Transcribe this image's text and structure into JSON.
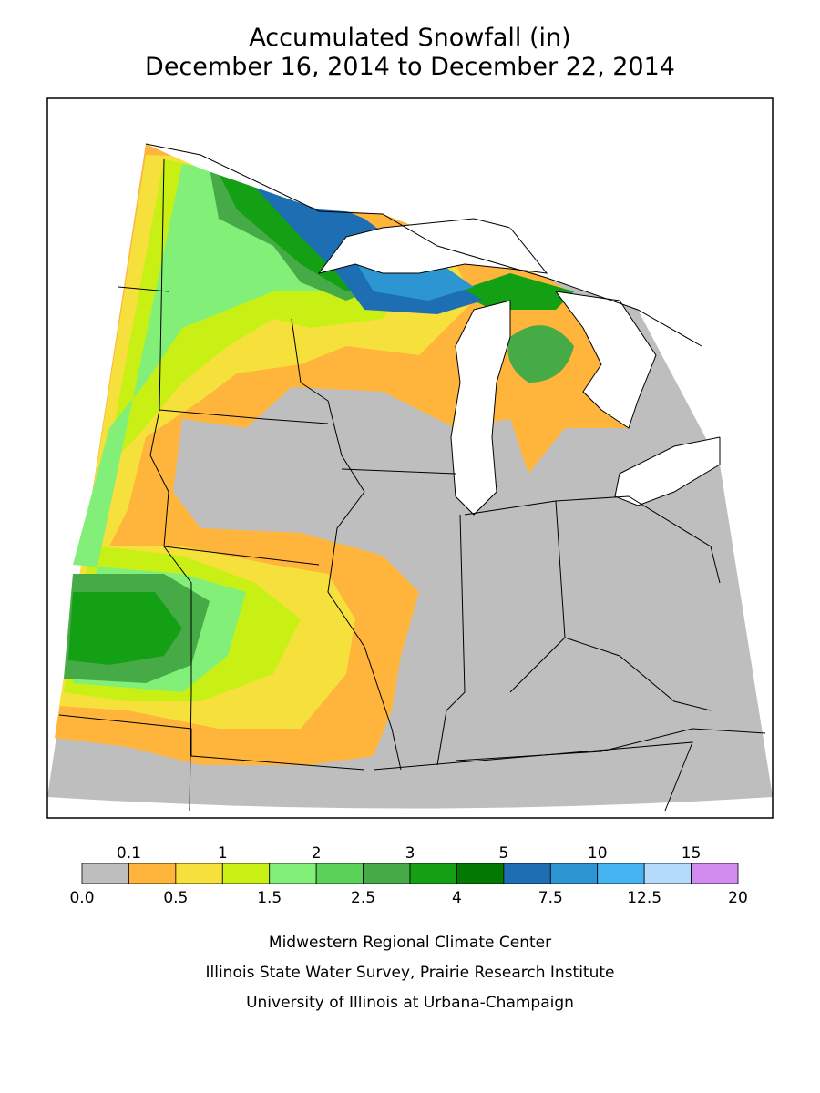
{
  "header": {
    "title": "Accumulated Snowfall (in)",
    "subtitle": "December 16, 2014 to December 22, 2014"
  },
  "legend": {
    "labels": [
      "0.0",
      "0.1",
      "0.5",
      "1",
      "1.5",
      "2",
      "2.5",
      "3",
      "4",
      "5",
      "7.5",
      "10",
      "12.5",
      "15",
      "20"
    ],
    "colors": [
      "#bebebe",
      "#ffb43c",
      "#f5e03c",
      "#c8f014",
      "#82f078",
      "#5ad25a",
      "#46aa46",
      "#14a014",
      "#037803",
      "#1e6eb4",
      "#2d96d2",
      "#46b4f0",
      "#b4dcfa",
      "#d28cf0"
    ]
  },
  "credits": [
    "Midwestern Regional Climate Center",
    "Illinois State Water Survey, Prairie Research Institute",
    "University of Illinois at Urbana-Champaign"
  ]
}
